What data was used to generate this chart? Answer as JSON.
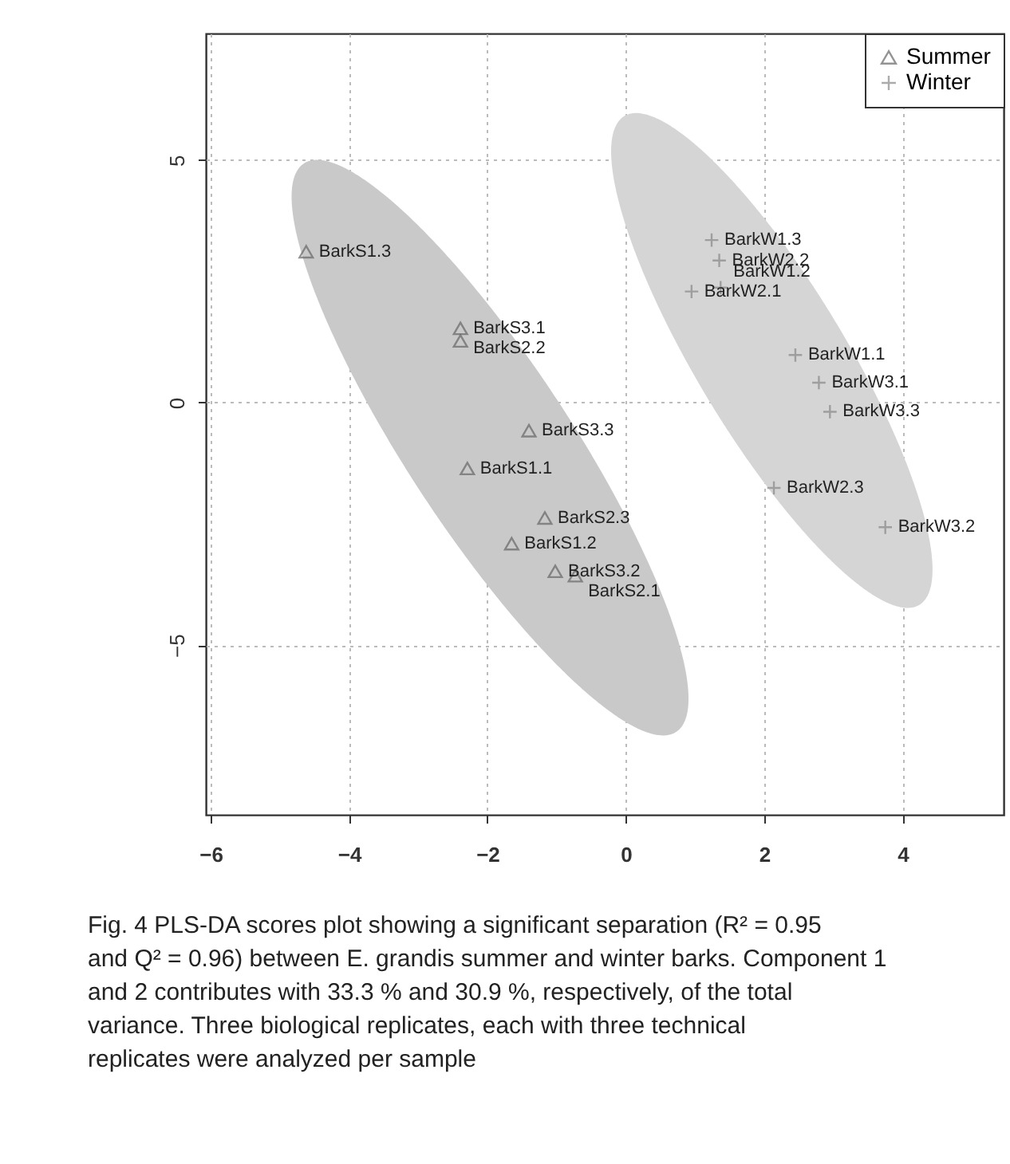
{
  "chart_data": {
    "type": "scatter",
    "xlim": [
      -6.07,
      5.46
    ],
    "ylim": [
      -8.5,
      7.61
    ],
    "xticks": [
      -6,
      -4,
      -2,
      0,
      2,
      4
    ],
    "yticks": [
      -5,
      0,
      5
    ],
    "grid": true,
    "legend": "top right",
    "series": [
      {
        "name": "Summer",
        "color": "#666666",
        "marker": "triangle",
        "x": [
          -4.62,
          -2.39,
          -2.39,
          -1.4,
          -2.29,
          -1.17,
          -1.65,
          -1.02,
          -0.73
        ],
        "values": [
          3.11,
          1.53,
          1.27,
          -0.58,
          -1.36,
          -2.38,
          -2.91,
          -3.48,
          -3.57
        ]
      },
      {
        "name": "Winter",
        "color": "#888888",
        "marker": "cross",
        "x": [
          1.24,
          1.35,
          0.95,
          1.37,
          2.45,
          2.79,
          2.95,
          2.14,
          3.75
        ],
        "values": [
          3.35,
          2.93,
          2.29,
          2.37,
          0.98,
          0.41,
          -0.19,
          -1.76,
          -2.57
        ]
      }
    ],
    "annotations": [
      {
        "text": "BarkS1.3",
        "x": -4.62,
        "y": 3.11
      },
      {
        "text": "BarkS3.1",
        "x": -2.39,
        "y": 1.53
      },
      {
        "text": "BarkS2.2",
        "x": -2.39,
        "y": 1.27
      },
      {
        "text": "BarkS3.3",
        "x": -1.4,
        "y": -0.58
      },
      {
        "text": "BarkS1.1",
        "x": -2.29,
        "y": -1.36
      },
      {
        "text": "BarkS2.3",
        "x": -1.17,
        "y": -2.38
      },
      {
        "text": "BarkS1.2",
        "x": -1.65,
        "y": -2.91
      },
      {
        "text": "BarkS3.2",
        "x": -1.02,
        "y": -3.48
      },
      {
        "text": "BarkS2.1",
        "x": -0.73,
        "y": -3.57
      },
      {
        "text": "BarkW1.3",
        "x": 1.24,
        "y": 3.35
      },
      {
        "text": "BarkW2.2",
        "x": 1.35,
        "y": 2.93
      },
      {
        "text": "BarkW2.1",
        "x": 0.95,
        "y": 2.29
      },
      {
        "text": "BarkW1.2",
        "x": 1.37,
        "y": 2.37
      },
      {
        "text": "BarkW1.1",
        "x": 2.45,
        "y": 0.98
      },
      {
        "text": "BarkW3.1",
        "x": 2.79,
        "y": 0.41
      },
      {
        "text": "BarkW3.3",
        "x": 2.95,
        "y": -0.19
      },
      {
        "text": "BarkW2.3",
        "x": 2.14,
        "y": -1.76
      },
      {
        "text": "BarkW3.2",
        "x": 3.75,
        "y": -2.57
      },
      "Fig. 4 PLS-DA scores plot showing a significant separation (R² = 0.95 and Q² = 0.96) between E. grandis summer and winter barks. Component 1 and 2 contributes with 33.3 % and 30.9 %, respectively, of the total variance. Three biological replicates, each with three technical replicates were analyzed per sample"
    ]
  }
}
